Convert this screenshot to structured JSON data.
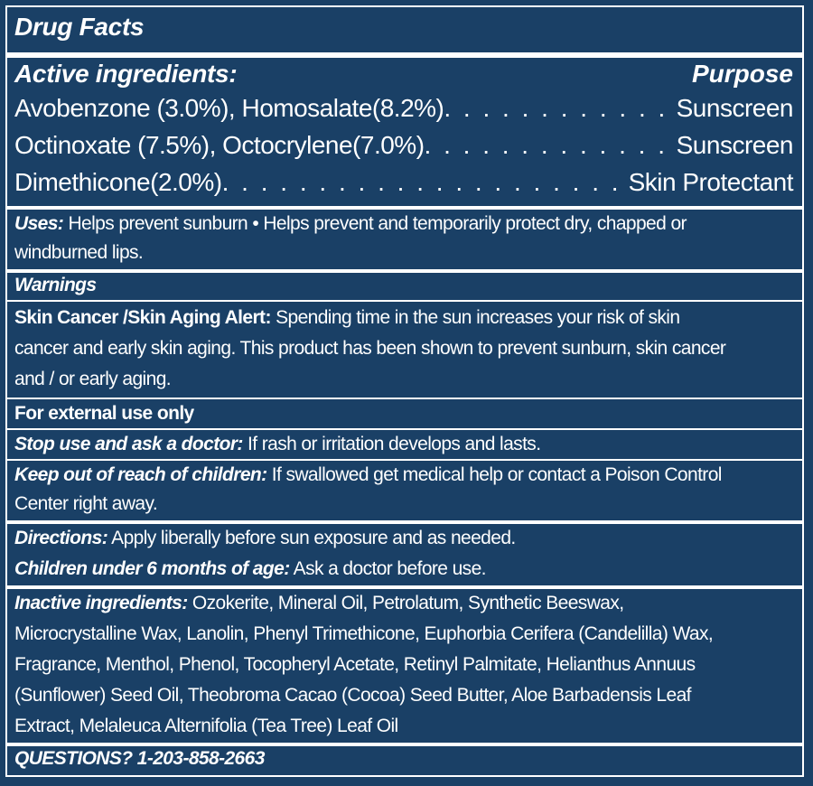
{
  "title": "Drug Facts",
  "active": {
    "heading": "Active ingredients:",
    "purpose_heading": "Purpose",
    "items": [
      {
        "name": "Avobenzone (3.0%), Homosalate(8.2%)",
        "purpose": "Sunscreen"
      },
      {
        "name": "Octinoxate (7.5%), Octocrylene(7.0%)",
        "purpose": "Sunscreen"
      },
      {
        "name": "Dimethicone(2.0%)",
        "purpose": "Skin Protectant"
      }
    ]
  },
  "uses": {
    "label": "Uses:",
    "line1": " Helps prevent sunburn • Helps prevent and temporarily protect dry, chapped or",
    "line2": "windburned lips."
  },
  "warnings": {
    "heading": "Warnings",
    "alert_label": "Skin Cancer /Skin Aging Alert:",
    "alert_line1": " Spending time in the sun increases your risk of skin",
    "alert_line2": "cancer and early skin aging. This product has been shown to prevent sunburn, skin cancer",
    "alert_line3": "and / or early aging.",
    "external": "For external use only",
    "stop_label": "Stop use and ask a doctor:",
    "stop_text": " If rash or irritation develops and lasts.",
    "keep_label": "Keep out of reach of children:",
    "keep_line1": " If swallowed get medical help or contact a Poison Control",
    "keep_line2": "Center right away."
  },
  "directions": {
    "label": "Directions:",
    "text": " Apply liberally before sun exposure and as needed.",
    "children_label": "Children under 6 months of age:",
    "children_text": " Ask a doctor before use."
  },
  "inactive": {
    "label": "Inactive ingredients:",
    "line1": " Ozokerite, Mineral Oil, Petrolatum, Synthetic Beeswax,",
    "line2": "Microcrystalline Wax, Lanolin, Phenyl Trimethicone, Euphorbia Cerifera (Candelilla) Wax,",
    "line3": "Fragrance, Menthol, Phenol, Tocopheryl Acetate, Retinyl Palmitate, Helianthus Annuus",
    "line4": "(Sunflower) Seed Oil, Theobroma Cacao (Cocoa) Seed Butter, Aloe Barbadensis Leaf",
    "line5": "Extract, Melaleuca Alternifolia (Tea Tree) Leaf Oil"
  },
  "questions": "QUESTIONS? 1-203-858-2663",
  "colors": {
    "background": "#1a4066",
    "text": "#ffffff"
  }
}
